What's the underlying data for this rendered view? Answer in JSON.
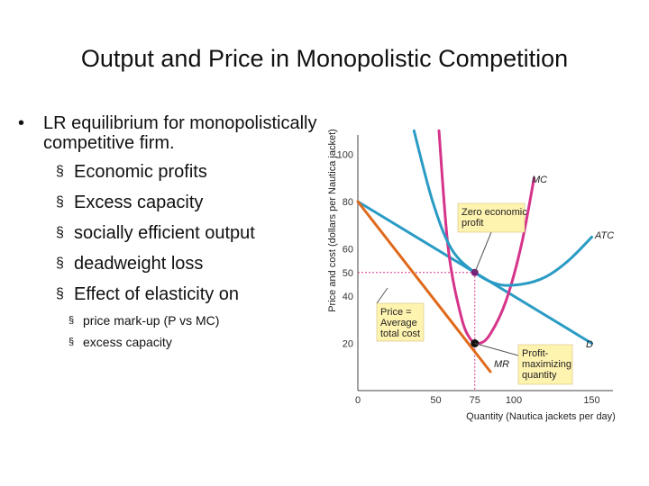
{
  "slide": {
    "title": "Output and Price in Monopolistic Competition",
    "bullet": "LR equilibrium for monopolistically competitive firm.",
    "subbullets": [
      "Economic profits",
      "Excess capacity",
      "socially efficient output",
      "deadweight loss",
      "Effect of elasticity on"
    ],
    "subsubbullets": [
      "price mark-up (P vs MC)",
      "excess capacity"
    ],
    "bullet_glyph": "•",
    "sub_glyph": "§"
  },
  "chart_data": {
    "type": "line",
    "xlabel": "Quantity (Nautica jackets per day)",
    "ylabel": "Price and cost (dollars per Nautica jacket)",
    "xlim": [
      0,
      160
    ],
    "ylim": [
      0,
      110
    ],
    "x_ticks": [
      0,
      50,
      75,
      100,
      150
    ],
    "y_ticks": [
      20,
      40,
      50,
      60,
      80,
      100
    ],
    "grid": false,
    "series": [
      {
        "name": "D",
        "color": "#2a9bc4",
        "points": [
          [
            0,
            80
          ],
          [
            150,
            20
          ]
        ]
      },
      {
        "name": "MR",
        "color": "#e06a1c",
        "points": [
          [
            0,
            80
          ],
          [
            85,
            8
          ]
        ]
      },
      {
        "name": "MC",
        "color": "#d6338a",
        "points": [
          [
            52,
            110
          ],
          [
            58,
            60
          ],
          [
            66,
            32
          ],
          [
            72,
            22
          ],
          [
            78,
            20
          ],
          [
            85,
            24
          ],
          [
            95,
            38
          ],
          [
            105,
            62
          ],
          [
            113,
            90
          ]
        ]
      },
      {
        "name": "ATC",
        "color": "#2a9bc4",
        "points": [
          [
            36,
            110
          ],
          [
            48,
            80
          ],
          [
            60,
            60
          ],
          [
            75,
            50
          ],
          [
            90,
            45
          ],
          [
            105,
            45
          ],
          [
            120,
            48
          ],
          [
            135,
            55
          ],
          [
            150,
            65
          ]
        ]
      }
    ],
    "equilibrium": {
      "quantity": 75,
      "price": 50,
      "mc_at_q": 20
    },
    "annotations": [
      {
        "text": "Zero economic profit",
        "color": "#fff3b0"
      },
      {
        "text": "Price = Average total cost",
        "color": "#fff3b0"
      },
      {
        "text": "Profit-maximizing quantity",
        "color": "#fff3b0"
      }
    ]
  }
}
